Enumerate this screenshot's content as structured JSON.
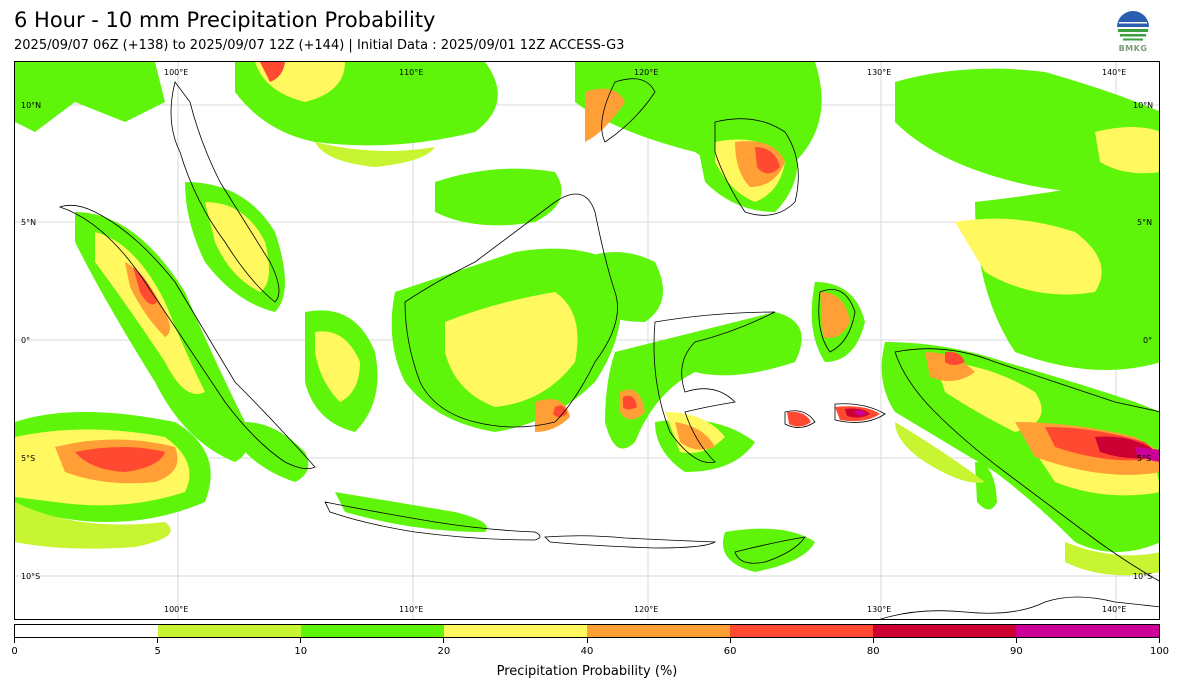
{
  "header": {
    "title": "6 Hour - 10 mm Precipitation Probability",
    "subtitle": "2025/09/07 06Z (+138) to 2025/09/07 12Z (+144) | Initial Data : 2025/09/01 12Z ACCESS-G3"
  },
  "logo": {
    "icon": "bmkg-logo-icon",
    "text": "BMKG"
  },
  "map": {
    "lon_labels": [
      "100°E",
      "110°E",
      "120°E",
      "130°E",
      "140°E"
    ],
    "lat_labels": [
      "10°N",
      "5°N",
      "0°",
      "5°S",
      "10°S"
    ],
    "background": "#ffffff",
    "coastline_color": "#000000"
  },
  "colorbar": {
    "title": "Precipitation Probability (%)",
    "tick_labels": [
      "0",
      "5",
      "10",
      "20",
      "40",
      "60",
      "80",
      "90",
      "100"
    ],
    "colors": [
      "#ffffff",
      "#c8f531",
      "#5ef50a",
      "#fff95f",
      "#ff9f36",
      "#ff4a31",
      "#cc0033",
      "#cc0099"
    ]
  }
}
